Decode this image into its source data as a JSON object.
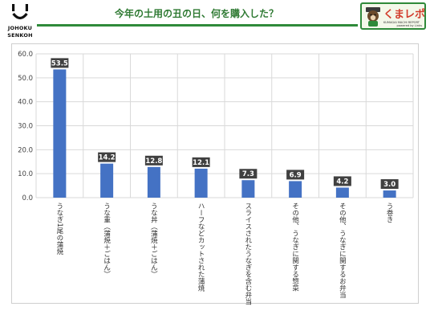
{
  "brand": {
    "left_logo_text": [
      "JOHOKU",
      "SENKOH"
    ],
    "badge_name": "くまレポ",
    "badge_subtitle": "KUMAGAI MACHI REPORT",
    "badge_powered": "powered by Links"
  },
  "colors": {
    "bar": "#4472c4",
    "title": "#2f7a33",
    "rule": "#2f8a3a",
    "label_bg": "#404040"
  },
  "chart_data": {
    "type": "bar",
    "title": "今年の土用の丑の日、何を購入した？",
    "categories": [
      "うなぎ1尾の蒲焼",
      "うな重（蒲焼＋ごはん）",
      "うな丼（蒲焼＋ごはん）",
      "ハーフなどカットされた蒲焼",
      "スライスされたうなぎを含む弁当",
      "その他、うなぎに関する惣菜",
      "その他、うなぎに関するお弁当",
      "う巻き"
    ],
    "values": [
      53.5,
      14.2,
      12.8,
      12.1,
      7.3,
      6.9,
      4.2,
      3.0
    ],
    "value_labels": [
      "53.5",
      "14.2",
      "12.8",
      "12.1",
      "7.3",
      "6.9",
      "4.2",
      "3.0"
    ],
    "yticks": [
      "0.0",
      "10.0",
      "20.0",
      "30.0",
      "40.0",
      "50.0",
      "60.0"
    ],
    "ylim": [
      0,
      60
    ],
    "grid": true,
    "xlabel": "",
    "ylabel": ""
  }
}
